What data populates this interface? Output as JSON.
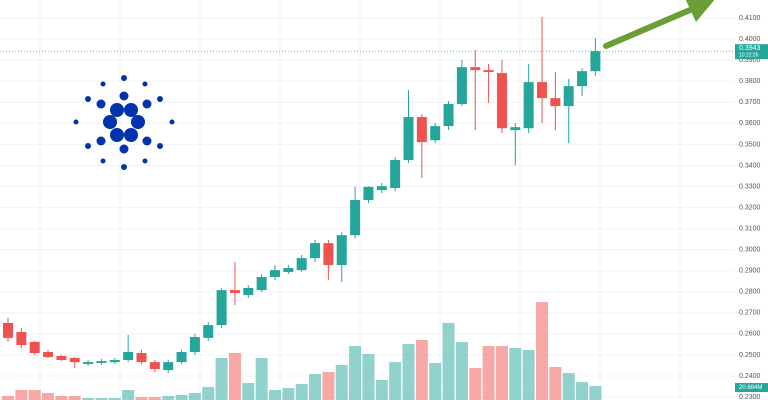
{
  "chart_data": {
    "type": "candlestick",
    "up_color": "#26a69a",
    "down_color": "#ef5350",
    "grid": true,
    "ylim": [
      0.2286,
      0.4186
    ],
    "yticks": [
      {
        "value": 0.23,
        "label": "0.2300"
      },
      {
        "value": 0.24,
        "label": "0.2400"
      },
      {
        "value": 0.25,
        "label": "0.2500"
      },
      {
        "value": 0.26,
        "label": "0.2600"
      },
      {
        "value": 0.27,
        "label": "0.2700"
      },
      {
        "value": 0.28,
        "label": "0.2800"
      },
      {
        "value": 0.29,
        "label": "0.2900"
      },
      {
        "value": 0.3,
        "label": "0.3000"
      },
      {
        "value": 0.31,
        "label": "0.3100"
      },
      {
        "value": 0.32,
        "label": "0.3200"
      },
      {
        "value": 0.33,
        "label": "0.3300"
      },
      {
        "value": 0.34,
        "label": "0.3400"
      },
      {
        "value": 0.35,
        "label": "0.3500"
      },
      {
        "value": 0.36,
        "label": "0.3600"
      },
      {
        "value": 0.37,
        "label": "0.3700"
      },
      {
        "value": 0.38,
        "label": "0.3800"
      },
      {
        "value": 0.39,
        "label": "0.3900"
      },
      {
        "value": 0.4,
        "label": "0.4000"
      },
      {
        "value": 0.41,
        "label": "0.4100"
      }
    ],
    "open": [
      0.2652,
      0.2609,
      0.2562,
      0.2514,
      0.2495,
      0.2486,
      0.2457,
      0.2462,
      0.2466,
      0.2476,
      0.2509,
      0.2466,
      0.2428,
      0.2466,
      0.2514,
      0.2581,
      0.2642,
      0.2808,
      0.2785,
      0.2808,
      0.287,
      0.2894,
      0.2903,
      0.296,
      0.3031,
      0.2927,
      0.3069,
      0.3236,
      0.3283,
      0.3293,
      0.3426,
      0.363,
      0.352,
      0.3587,
      0.3692,
      0.3867,
      0.3853,
      0.3839,
      0.3568,
      0.3577,
      0.3796,
      0.372,
      0.3682,
      0.3777,
      0.3848
    ],
    "high": [
      0.2676,
      0.2628,
      0.2566,
      0.2524,
      0.25,
      0.249,
      0.2476,
      0.2481,
      0.2486,
      0.2595,
      0.2524,
      0.2476,
      0.2476,
      0.2524,
      0.26,
      0.2656,
      0.2817,
      0.2941,
      0.2832,
      0.2884,
      0.2927,
      0.2927,
      0.2975,
      0.3046,
      0.3046,
      0.3083,
      0.3298,
      0.3302,
      0.3317,
      0.344,
      0.3758,
      0.3644,
      0.3601,
      0.3706,
      0.3901,
      0.3948,
      0.3882,
      0.3901,
      0.3601,
      0.3882,
      0.4105,
      0.3844,
      0.3811,
      0.3863,
      0.4005
    ],
    "low": [
      0.2562,
      0.2533,
      0.25,
      0.2486,
      0.2471,
      0.2438,
      0.2447,
      0.2452,
      0.2457,
      0.2466,
      0.2457,
      0.2419,
      0.2414,
      0.2457,
      0.25,
      0.2566,
      0.2628,
      0.2737,
      0.2771,
      0.2799,
      0.2856,
      0.2884,
      0.2894,
      0.2941,
      0.2856,
      0.2846,
      0.3055,
      0.3221,
      0.3269,
      0.3278,
      0.3412,
      0.3341,
      0.3506,
      0.3568,
      0.3682,
      0.3568,
      0.3697,
      0.3554,
      0.3402,
      0.3554,
      0.3601,
      0.3568,
      0.3506,
      0.373,
      0.3825
    ],
    "close": [
      0.2581,
      0.2547,
      0.2509,
      0.249,
      0.2476,
      0.2466,
      0.2466,
      0.2471,
      0.2476,
      0.2514,
      0.2466,
      0.2433,
      0.2466,
      0.2514,
      0.2585,
      0.2642,
      0.2808,
      0.2794,
      0.2818,
      0.287,
      0.2903,
      0.2913,
      0.296,
      0.3031,
      0.2927,
      0.3069,
      0.3236,
      0.3298,
      0.3302,
      0.3426,
      0.363,
      0.3511,
      0.3587,
      0.3692,
      0.3867,
      0.3853,
      0.3844,
      0.3577,
      0.3582,
      0.3796,
      0.372,
      0.3682,
      0.3777,
      0.3848,
      0.3943
    ],
    "volume": [
      5.9,
      14.8,
      14.8,
      10.4,
      5.9,
      5.9,
      3,
      3,
      3,
      14.8,
      4.4,
      4.4,
      5.9,
      7.4,
      10.4,
      19.2,
      62.2,
      69.6,
      25.2,
      62.2,
      14.8,
      17.8,
      23.7,
      38.5,
      41.4,
      51.8,
      79.9,
      68.1,
      29.6,
      56.2,
      82.9,
      88.8,
      54.8,
      114,
      85.8,
      47.4,
      79.9,
      79.9,
      77,
      74,
      145,
      48.8,
      40,
      26.6,
      20.684
    ],
    "volume_value_labels": {
      "44": "20.684M"
    },
    "countdown": "10:22:26"
  }
}
